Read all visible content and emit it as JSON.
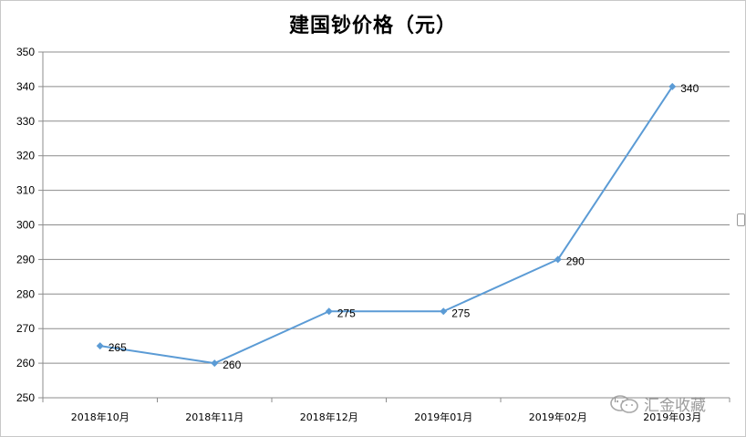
{
  "chart_data": {
    "type": "line",
    "title": "建国钞价格（元）",
    "categories": [
      "2018年10月",
      "2018年11月",
      "2018年12月",
      "2019年01月",
      "2019年02月",
      "2019年03月"
    ],
    "series": [
      {
        "values": [
          265,
          260,
          275,
          275,
          290,
          340
        ]
      }
    ],
    "data_labels": [
      "265",
      "260",
      "275",
      "275",
      "290",
      "340"
    ],
    "yticks": [
      "250",
      "260",
      "270",
      "280",
      "290",
      "300",
      "310",
      "320",
      "330",
      "340",
      "350"
    ],
    "ylim": [
      250,
      350
    ],
    "grid": "horizontal",
    "legend": "none",
    "line_color": "#5b9bd5",
    "grid_color": "#8c8c8c"
  },
  "watermark": {
    "text": "汇金收藏",
    "icon": "wechat-icon"
  }
}
